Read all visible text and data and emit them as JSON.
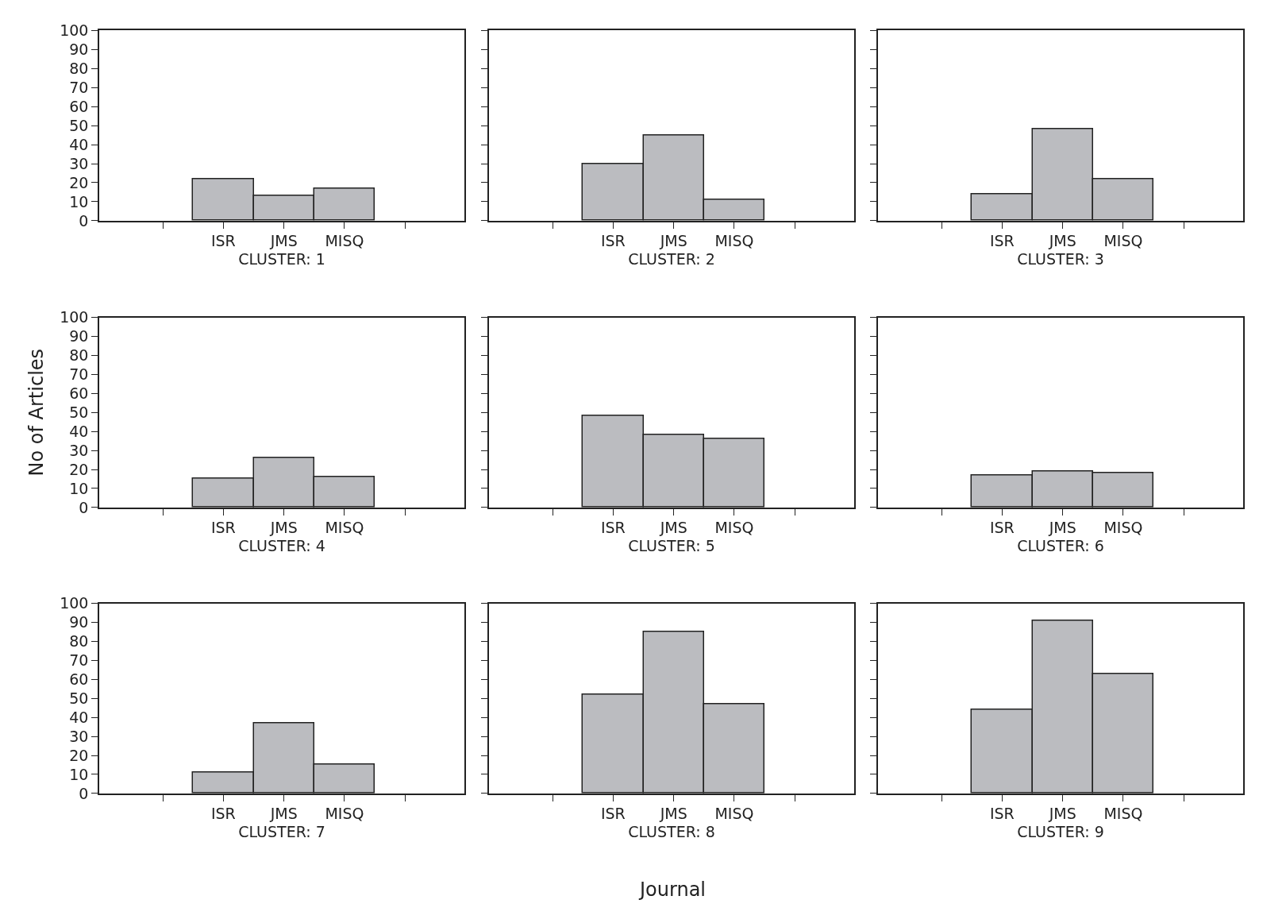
{
  "chart_data": [
    {
      "type": "bar",
      "categories": [
        null,
        "ISR",
        "JMS",
        "MISQ",
        null
      ],
      "values": [
        null,
        22,
        13,
        17,
        null
      ],
      "color": "#bbbcc0",
      "xlabel": "CLUSTER: 1",
      "ylim": [
        0,
        100
      ],
      "yticks": [
        0,
        10,
        20,
        30,
        40,
        50,
        60,
        70,
        80,
        90,
        100
      ]
    },
    {
      "type": "bar",
      "categories": [
        null,
        "ISR",
        "JMS",
        "MISQ",
        null
      ],
      "values": [
        null,
        30,
        45,
        11,
        null
      ],
      "color": "#bbbcc0",
      "xlabel": "CLUSTER: 2",
      "ylim": [
        0,
        100
      ],
      "yticks": [
        {
          "value": 0,
          "label": null
        },
        {
          "value": 10,
          "label": null
        },
        {
          "value": 20,
          "label": null
        },
        {
          "value": 30,
          "label": null
        },
        {
          "value": 40,
          "label": null
        },
        {
          "value": 50,
          "label": null
        },
        {
          "value": 60,
          "label": null
        },
        {
          "value": 70,
          "label": null
        },
        {
          "value": 80,
          "label": null
        },
        {
          "value": 90,
          "label": null
        },
        {
          "value": 100,
          "label": null
        }
      ],
      "tick_labels": "x"
    },
    {
      "type": "bar",
      "categories": [
        null,
        "ISR",
        "JMS",
        "MISQ",
        null
      ],
      "values": [
        null,
        14,
        48,
        22,
        null
      ],
      "color": "#bbbcc0",
      "xlabel": "CLUSTER: 3",
      "ylim": [
        0,
        100
      ],
      "yticks": [
        {
          "value": 0,
          "label": null
        },
        {
          "value": 10,
          "label": null
        },
        {
          "value": 20,
          "label": null
        },
        {
          "value": 30,
          "label": null
        },
        {
          "value": 40,
          "label": null
        },
        {
          "value": 50,
          "label": null
        },
        {
          "value": 60,
          "label": null
        },
        {
          "value": 70,
          "label": null
        },
        {
          "value": 80,
          "label": null
        },
        {
          "value": 90,
          "label": null
        },
        {
          "value": 100,
          "label": null
        }
      ],
      "tick_labels": "x"
    },
    {
      "type": "bar",
      "categories": [
        null,
        "ISR",
        "JMS",
        "MISQ",
        null
      ],
      "values": [
        null,
        15,
        26,
        16,
        null
      ],
      "color": "#bbbcc0",
      "xlabel": "CLUSTER: 4",
      "ylabel": "No of Articles",
      "ylim": [
        0,
        100
      ],
      "yticks": [
        0,
        10,
        20,
        30,
        40,
        50,
        60,
        70,
        80,
        90,
        100
      ]
    },
    {
      "type": "bar",
      "categories": [
        null,
        "ISR",
        "JMS",
        "MISQ",
        null
      ],
      "values": [
        null,
        48,
        38,
        36,
        null
      ],
      "color": "#bbbcc0",
      "xlabel": "CLUSTER: 5",
      "ylim": [
        0,
        100
      ],
      "yticks": [
        {
          "value": 0,
          "label": null
        },
        {
          "value": 10,
          "label": null
        },
        {
          "value": 20,
          "label": null
        },
        {
          "value": 30,
          "label": null
        },
        {
          "value": 40,
          "label": null
        },
        {
          "value": 50,
          "label": null
        },
        {
          "value": 60,
          "label": null
        },
        {
          "value": 70,
          "label": null
        },
        {
          "value": 80,
          "label": null
        },
        {
          "value": 90,
          "label": null
        },
        {
          "value": 100,
          "label": null
        }
      ],
      "tick_labels": "x"
    },
    {
      "type": "bar",
      "categories": [
        null,
        "ISR",
        "JMS",
        "MISQ",
        null
      ],
      "values": [
        null,
        17,
        19,
        18,
        null
      ],
      "color": "#bbbcc0",
      "xlabel": "CLUSTER: 6",
      "ylim": [
        0,
        100
      ],
      "yticks": [
        {
          "value": 0,
          "label": null
        },
        {
          "value": 10,
          "label": null
        },
        {
          "value": 20,
          "label": null
        },
        {
          "value": 30,
          "label": null
        },
        {
          "value": 40,
          "label": null
        },
        {
          "value": 50,
          "label": null
        },
        {
          "value": 60,
          "label": null
        },
        {
          "value": 70,
          "label": null
        },
        {
          "value": 80,
          "label": null
        },
        {
          "value": 90,
          "label": null
        },
        {
          "value": 100,
          "label": null
        }
      ],
      "tick_labels": "x"
    },
    {
      "type": "bar",
      "categories": [
        null,
        "ISR",
        "JMS",
        "MISQ",
        null
      ],
      "values": [
        null,
        11,
        37,
        15,
        null
      ],
      "color": "#bbbcc0",
      "xlabel": "CLUSTER: 7",
      "ylim": [
        0,
        100
      ],
      "yticks": [
        0,
        10,
        20,
        30,
        40,
        50,
        60,
        70,
        80,
        90,
        100
      ]
    },
    {
      "type": "bar",
      "categories": [
        null,
        "ISR",
        "JMS",
        "MISQ",
        null
      ],
      "values": [
        null,
        52,
        85,
        47,
        null
      ],
      "color": "#bbbcc0",
      "xlabel": "CLUSTER: 8",
      "annotations": [
        "Journal"
      ],
      "ylim": [
        0,
        100
      ],
      "yticks": [
        {
          "value": 0,
          "label": null
        },
        {
          "value": 10,
          "label": null
        },
        {
          "value": 20,
          "label": null
        },
        {
          "value": 30,
          "label": null
        },
        {
          "value": 40,
          "label": null
        },
        {
          "value": 50,
          "label": null
        },
        {
          "value": 60,
          "label": null
        },
        {
          "value": 70,
          "label": null
        },
        {
          "value": 80,
          "label": null
        },
        {
          "value": 90,
          "label": null
        },
        {
          "value": 100,
          "label": null
        }
      ],
      "tick_labels": "x"
    },
    {
      "type": "bar",
      "categories": [
        null,
        "ISR",
        "JMS",
        "MISQ",
        null
      ],
      "values": [
        null,
        44,
        91,
        63,
        null
      ],
      "color": "#bbbcc0",
      "xlabel": "CLUSTER: 9",
      "ylim": [
        0,
        100
      ],
      "yticks": [
        {
          "value": 0,
          "label": null
        },
        {
          "value": 10,
          "label": null
        },
        {
          "value": 20,
          "label": null
        },
        {
          "value": 30,
          "label": null
        },
        {
          "value": 40,
          "label": null
        },
        {
          "value": 50,
          "label": null
        },
        {
          "value": 60,
          "label": null
        },
        {
          "value": 70,
          "label": null
        },
        {
          "value": 80,
          "label": null
        },
        {
          "value": 90,
          "label": null
        },
        {
          "value": 100,
          "label": null
        }
      ],
      "tick_labels": "x"
    }
  ]
}
